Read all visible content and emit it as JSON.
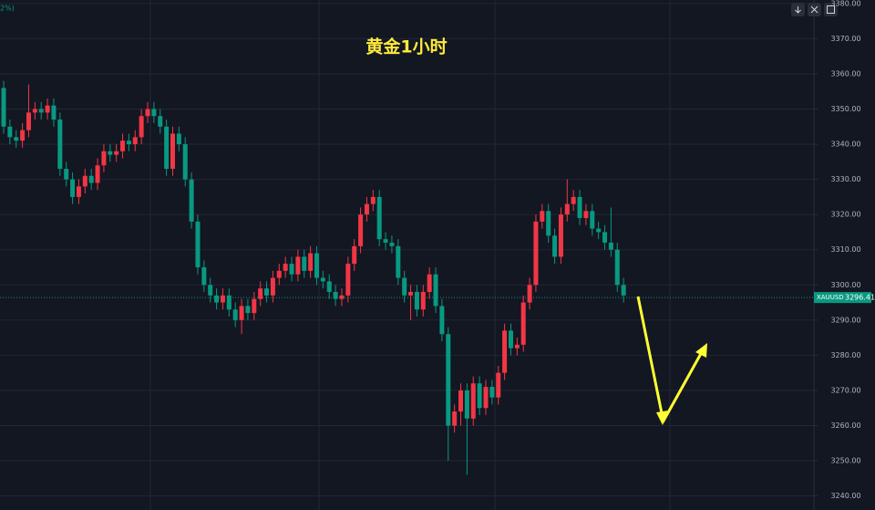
{
  "chart_data": {
    "type": "candlestick",
    "title": "黄金1小时",
    "corner_text": "2%)",
    "symbol": "XAUUSD",
    "last_price": {
      "value": 3296.41,
      "label": "3296.41"
    },
    "up_color": "#f23645",
    "down_color": "#089981",
    "ylim": [
      3236,
      3381
    ],
    "yticks": [
      {
        "value": 3240,
        "label": "3240.00"
      },
      {
        "value": 3250,
        "label": "3250.00"
      },
      {
        "value": 3260,
        "label": "3260.00"
      },
      {
        "value": 3270,
        "label": "3270.00"
      },
      {
        "value": 3280,
        "label": "3280.00"
      },
      {
        "value": 3290,
        "label": "3290.00"
      },
      {
        "value": 3300,
        "label": "3300.00"
      },
      {
        "value": 3310,
        "label": "3310.00"
      },
      {
        "value": 3320,
        "label": "3320.00"
      },
      {
        "value": 3330,
        "label": "3330.00"
      },
      {
        "value": 3340,
        "label": "3340.00"
      },
      {
        "value": 3350,
        "label": "3350.00"
      },
      {
        "value": 3360,
        "label": "3360.00"
      },
      {
        "value": 3370,
        "label": "3370.00"
      },
      {
        "value": 3380,
        "label": "3380.00"
      }
    ],
    "grid": true,
    "open": [
      3356,
      3345,
      3342,
      3341,
      3344,
      3349,
      3350,
      3349,
      3351,
      3347,
      3333,
      3330,
      3325,
      3328,
      3331,
      3329,
      3334,
      3338,
      3337,
      3338,
      3341,
      3340,
      3342,
      3348,
      3350,
      3348,
      3345,
      3333,
      3343,
      3340,
      3330,
      3318,
      3305,
      3300,
      3297,
      3295,
      3297,
      3293,
      3290,
      3294,
      3292,
      3296,
      3299,
      3297,
      3302,
      3304,
      3306,
      3303,
      3308,
      3304,
      3309,
      3302,
      3301,
      3298,
      3296,
      3297,
      3306,
      3311,
      3320,
      3323,
      3325,
      3313,
      3312,
      3311,
      3302,
      3297,
      3298,
      3293,
      3298,
      3303,
      3294,
      3286,
      3260,
      3264,
      3270,
      3262,
      3272,
      3265,
      3271,
      3268,
      3275,
      3287,
      3282,
      3283,
      3295,
      3300,
      3318,
      3321,
      3314,
      3308,
      3320,
      3323,
      3325,
      3319,
      3321,
      3316,
      3315,
      3312,
      3310,
      3300
    ],
    "high": [
      3358,
      3347,
      3344,
      3346,
      3357,
      3352,
      3352,
      3353,
      3353,
      3349,
      3335,
      3332,
      3330,
      3333,
      3333,
      3336,
      3340,
      3340,
      3340,
      3343,
      3343,
      3344,
      3350,
      3352,
      3352,
      3350,
      3347,
      3345,
      3345,
      3342,
      3332,
      3320,
      3307,
      3302,
      3299,
      3299,
      3299,
      3295,
      3296,
      3296,
      3298,
      3301,
      3301,
      3304,
      3306,
      3308,
      3308,
      3310,
      3310,
      3311,
      3311,
      3304,
      3303,
      3300,
      3299,
      3308,
      3313,
      3322,
      3325,
      3327,
      3327,
      3315,
      3314,
      3313,
      3304,
      3300,
      3300,
      3300,
      3305,
      3305,
      3296,
      3288,
      3266,
      3272,
      3272,
      3274,
      3274,
      3273,
      3273,
      3277,
      3289,
      3289,
      3285,
      3297,
      3302,
      3320,
      3323,
      3323,
      3316,
      3322,
      3330,
      3327,
      3327,
      3323,
      3323,
      3318,
      3317,
      3322,
      3312,
      3302
    ],
    "low": [
      3343,
      3340,
      3339,
      3339,
      3342,
      3347,
      3347,
      3347,
      3345,
      3331,
      3328,
      3323,
      3323,
      3326,
      3327,
      3327,
      3332,
      3335,
      3335,
      3336,
      3338,
      3338,
      3340,
      3346,
      3346,
      3343,
      3331,
      3331,
      3338,
      3328,
      3316,
      3303,
      3298,
      3295,
      3293,
      3293,
      3291,
      3288,
      3286,
      3290,
      3290,
      3294,
      3295,
      3295,
      3300,
      3302,
      3301,
      3301,
      3302,
      3302,
      3300,
      3299,
      3296,
      3294,
      3294,
      3295,
      3304,
      3309,
      3318,
      3321,
      3311,
      3310,
      3309,
      3300,
      3295,
      3290,
      3291,
      3291,
      3296,
      3292,
      3284,
      3250,
      3258,
      3260,
      3246,
      3260,
      3263,
      3263,
      3266,
      3266,
      3273,
      3280,
      3280,
      3281,
      3293,
      3298,
      3316,
      3312,
      3306,
      3306,
      3318,
      3321,
      3317,
      3317,
      3314,
      3313,
      3310,
      3308,
      3298,
      3295
    ],
    "close": [
      3345,
      3342,
      3341,
      3344,
      3349,
      3350,
      3349,
      3351,
      3347,
      3333,
      3330,
      3325,
      3328,
      3331,
      3329,
      3334,
      3338,
      3337,
      3338,
      3341,
      3340,
      3342,
      3348,
      3350,
      3348,
      3345,
      3333,
      3343,
      3340,
      3330,
      3318,
      3305,
      3300,
      3297,
      3295,
      3297,
      3293,
      3290,
      3294,
      3292,
      3296,
      3299,
      3297,
      3302,
      3304,
      3306,
      3303,
      3308,
      3304,
      3309,
      3302,
      3301,
      3298,
      3296,
      3297,
      3306,
      3311,
      3320,
      3323,
      3325,
      3313,
      3312,
      3311,
      3302,
      3297,
      3298,
      3293,
      3298,
      3303,
      3294,
      3286,
      3260,
      3264,
      3270,
      3262,
      3272,
      3265,
      3271,
      3268,
      3275,
      3287,
      3282,
      3283,
      3295,
      3300,
      3318,
      3321,
      3314,
      3308,
      3320,
      3323,
      3325,
      3319,
      3321,
      3316,
      3315,
      3312,
      3310,
      3300,
      3297
    ]
  }
}
